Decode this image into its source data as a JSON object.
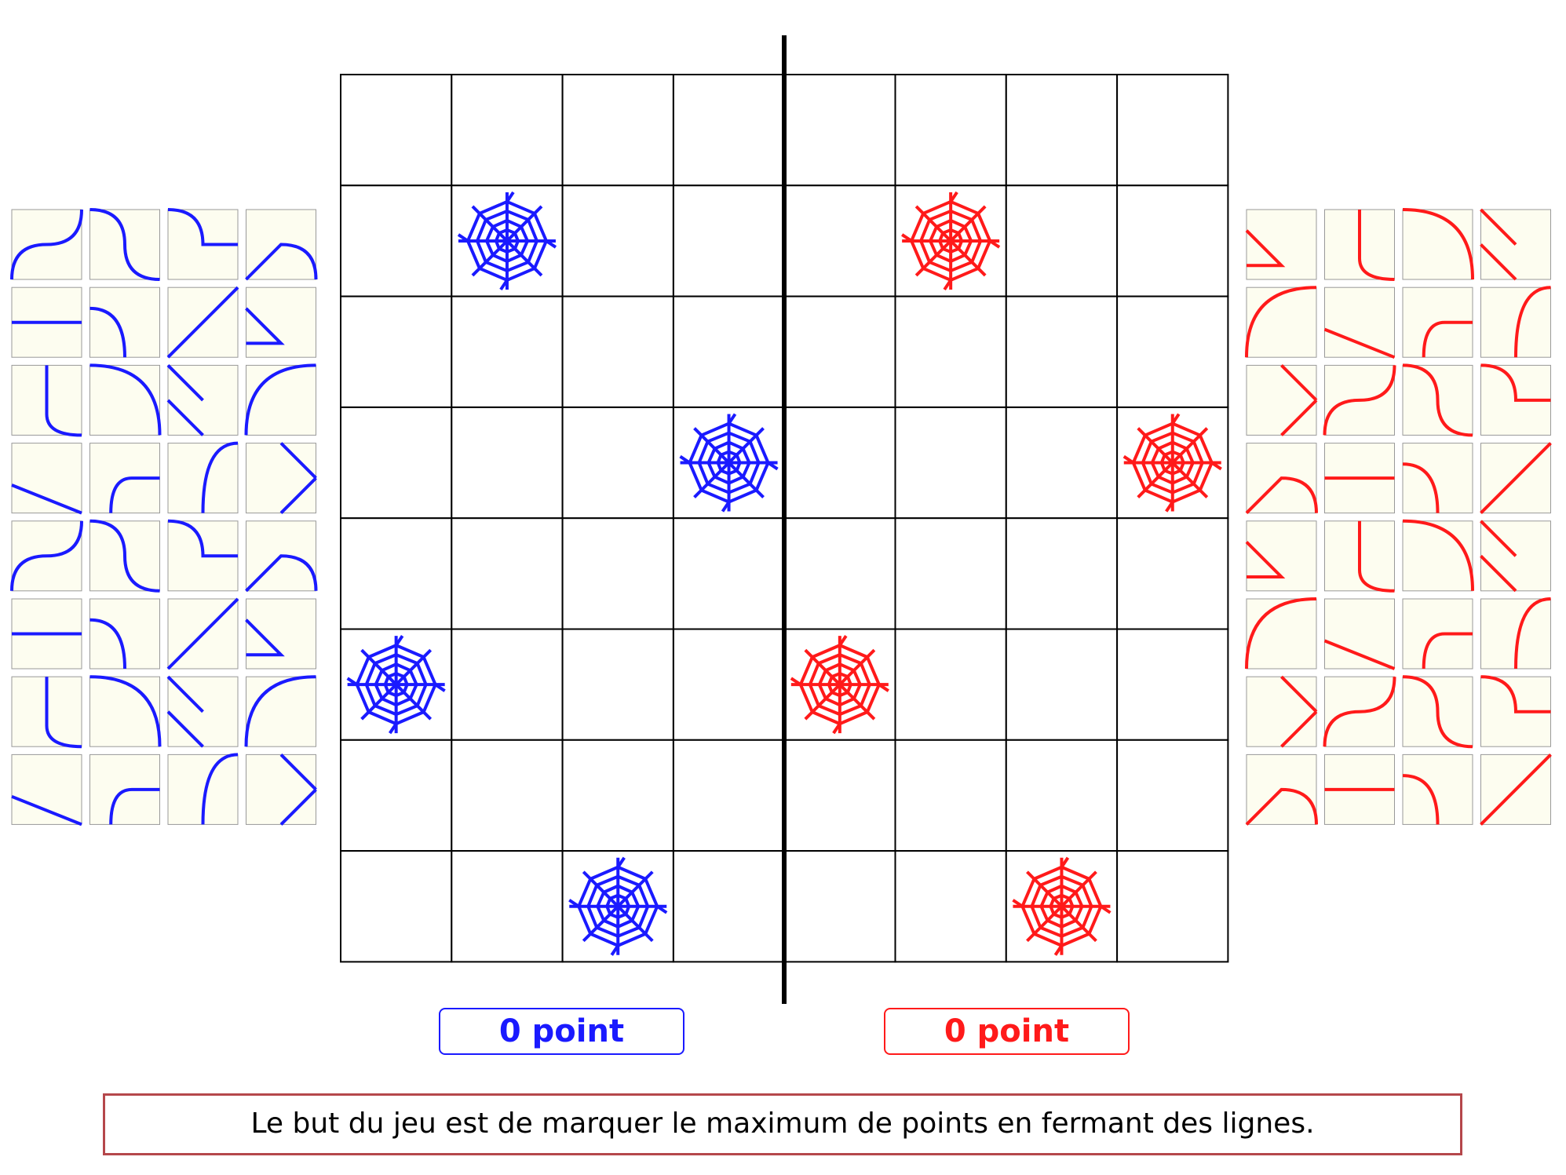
{
  "scores": {
    "blue": "0 point",
    "red": "0 point"
  },
  "message": "Le but du jeu est de marquer le maximum de points en fermant des lignes."
}
